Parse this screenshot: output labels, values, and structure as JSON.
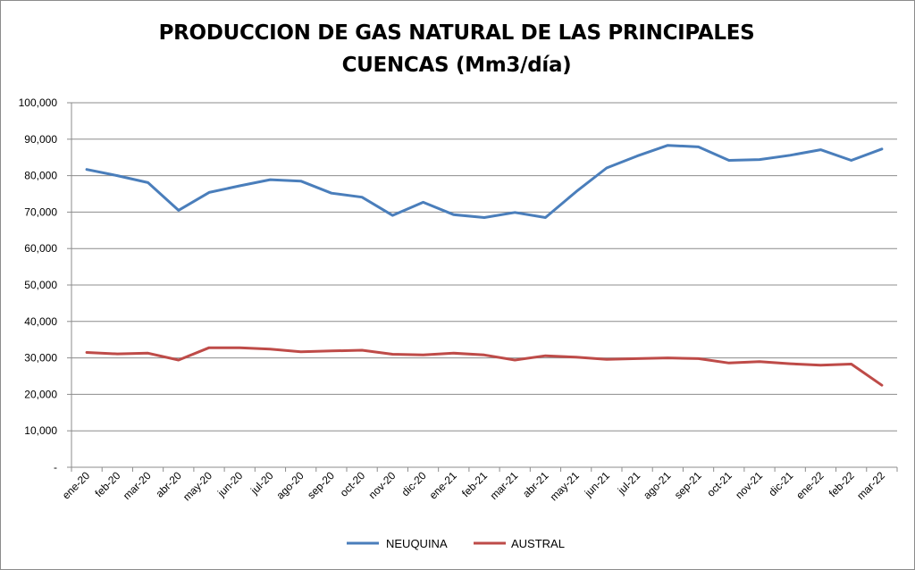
{
  "chart_data": {
    "type": "line",
    "title_line1": "PRODUCCION DE GAS NATURAL DE LAS PRINCIPALES",
    "title_line2": "CUENCAS (Mm3/día)",
    "categories": [
      "ene-20",
      "feb-20",
      "mar-20",
      "abr-20",
      "may-20",
      "jun-20",
      "jul-20",
      "ago-20",
      "sep-20",
      "oct-20",
      "nov-20",
      "dic-20",
      "ene-21",
      "feb-21",
      "mar-21",
      "abr-21",
      "may-21",
      "jun-21",
      "jul-21",
      "ago-21",
      "sep-21",
      "oct-21",
      "nov-21",
      "dic-21",
      "ene-22",
      "feb-22",
      "mar-22"
    ],
    "series": [
      {
        "name": "NEUQUINA",
        "color": "#4a7ebb",
        "values": [
          81700,
          80000,
          78100,
          70500,
          75400,
          77200,
          78900,
          78500,
          75200,
          74100,
          69100,
          72700,
          69300,
          68500,
          69900,
          68500,
          75600,
          82100,
          85400,
          88300,
          87900,
          84200,
          84400,
          85600,
          87100,
          84200,
          87300
        ]
      },
      {
        "name": "AUSTRAL",
        "color": "#be4b48",
        "values": [
          31500,
          31100,
          31300,
          29400,
          32800,
          32800,
          32400,
          31700,
          31900,
          32100,
          31000,
          30800,
          31300,
          30800,
          29400,
          30600,
          30200,
          29600,
          29800,
          30000,
          29800,
          28600,
          29000,
          28400,
          28000,
          28300,
          22500
        ]
      }
    ],
    "yticks": [
      "-",
      "10,000",
      "20,000",
      "30,000",
      "40,000",
      "50,000",
      "60,000",
      "70,000",
      "80,000",
      "90,000",
      "100,000"
    ],
    "ylim": [
      0,
      100000
    ],
    "grid": true,
    "legend": "bottom"
  }
}
